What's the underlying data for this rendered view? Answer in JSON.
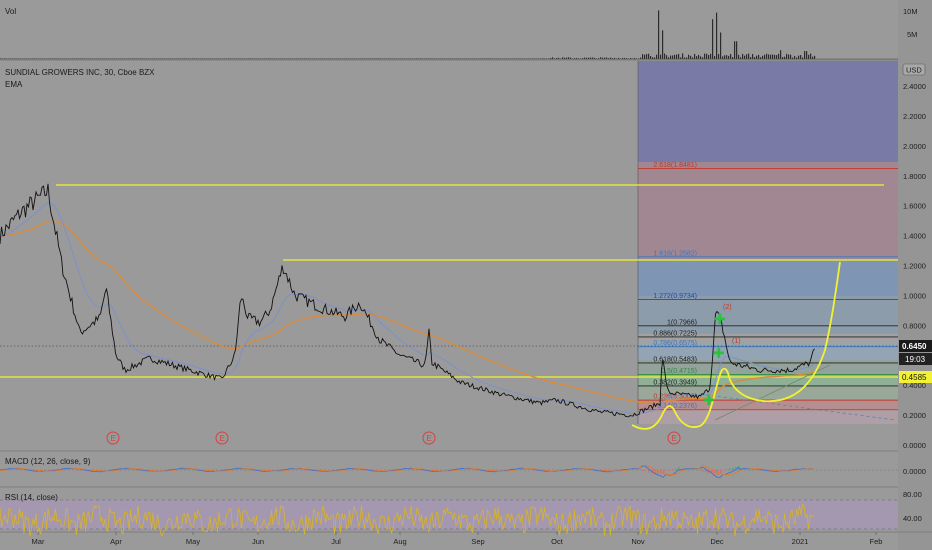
{
  "chart_data": [
    {
      "type": "line",
      "pane": "volume",
      "title": "Vol",
      "y_ticks": [
        "10M",
        "5M"
      ],
      "ylim": [
        0,
        12000000
      ],
      "series": [
        {
          "name": "Vol",
          "x": [
            "Nov",
            "Nov",
            "Dec",
            "Dec",
            "Dec",
            "2021"
          ],
          "values": [
            6000000,
            11000000,
            9000000,
            10500000,
            4000000,
            2000000
          ]
        }
      ]
    },
    {
      "type": "line",
      "pane": "price",
      "title": "SUNDIAL GROWERS INC, 30, Cboe BZX",
      "subtitle": "EMA",
      "unit_badge": "USD",
      "ylim": [
        0,
        2.5
      ],
      "y_ticks": [
        "0.0000",
        "0.2000",
        "0.4000",
        "0.6000",
        "0.8000",
        "1.0000",
        "1.2000",
        "1.4000",
        "1.6000",
        "1.8000",
        "2.0000",
        "2.2000",
        "2.4000"
      ],
      "x_ticks": [
        "Mar",
        "Apr",
        "May",
        "Jun",
        "Jul",
        "Aug",
        "Sep",
        "Oct",
        "Nov",
        "Dec",
        "2021",
        "Feb"
      ],
      "price_labels": {
        "last": "0.6450",
        "countdown": "19:03",
        "level": "0.4585"
      },
      "series": [
        {
          "name": "price",
          "x": [
            "Feb",
            "Mar",
            "Mar",
            "Apr",
            "Apr",
            "May",
            "Jun",
            "Jun",
            "Jul",
            "Aug",
            "Aug",
            "Sep",
            "Oct",
            "Nov",
            "Nov",
            "Dec",
            "Dec",
            "2021"
          ],
          "values": [
            1.4,
            1.7,
            0.7,
            1.05,
            0.5,
            0.43,
            1.25,
            0.8,
            0.85,
            0.52,
            0.75,
            0.32,
            0.22,
            0.3,
            0.3,
            0.9,
            0.45,
            0.65
          ]
        }
      ],
      "earnings_markers": [
        "E",
        "E",
        "E",
        "E"
      ],
      "horizontal_levels": [
        1.7,
        1.21,
        0.4585
      ],
      "fibonacci": [
        {
          "label": "2.618(1.8481)",
          "value": 1.8481,
          "color": "#c0392b"
        },
        {
          "label": "1.618(1.2582)",
          "value": 1.2582,
          "color": "#3a78c2"
        },
        {
          "label": "1.272(0.9734)",
          "value": 0.9734,
          "color": "#1f4fa8"
        },
        {
          "label": "1(0.7966)",
          "value": 0.7966,
          "color": "#222222"
        },
        {
          "label": "0.886(0.7225)",
          "value": 0.7225,
          "color": "#222222"
        },
        {
          "label": "0.786(0.6575)",
          "value": 0.6575,
          "color": "#3a78c2"
        },
        {
          "label": "0.618(0.5483)",
          "value": 0.5483,
          "color": "#222222"
        },
        {
          "label": "0.5(0.4715)",
          "value": 0.4715,
          "color": "#2e8b3e"
        },
        {
          "label": "0.382(0.3949)",
          "value": 0.3949,
          "color": "#222222"
        },
        {
          "label": "0.236(0.3000)",
          "value": 0.3,
          "color": "#c0392b"
        },
        {
          "label": "0.14(0.2376)",
          "value": 0.2376,
          "color": "#3a78c2"
        }
      ],
      "wave_labels": [
        "(2)",
        "(1)"
      ]
    },
    {
      "type": "line",
      "pane": "macd",
      "title": "MACD (12, 26, close, 9)",
      "y_ticks": [
        "0.0000"
      ],
      "series": [
        {
          "name": "MACD",
          "x": [
            "Mar",
            "Jun",
            "Aug",
            "Nov",
            "Dec",
            "2021"
          ],
          "values": [
            0,
            0.02,
            0.01,
            0.02,
            0.05,
            0
          ]
        }
      ]
    },
    {
      "type": "line",
      "pane": "rsi",
      "title": "RSI (14, close)",
      "y_ticks": [
        "80.00",
        "40.00"
      ],
      "ylim": [
        20,
        90
      ],
      "series": [
        {
          "name": "RSI",
          "x": [
            "Mar",
            "May",
            "Jul",
            "Sep",
            "Nov",
            "Dec",
            "2021"
          ],
          "values": [
            55,
            45,
            60,
            40,
            70,
            50,
            75
          ]
        }
      ]
    }
  ]
}
